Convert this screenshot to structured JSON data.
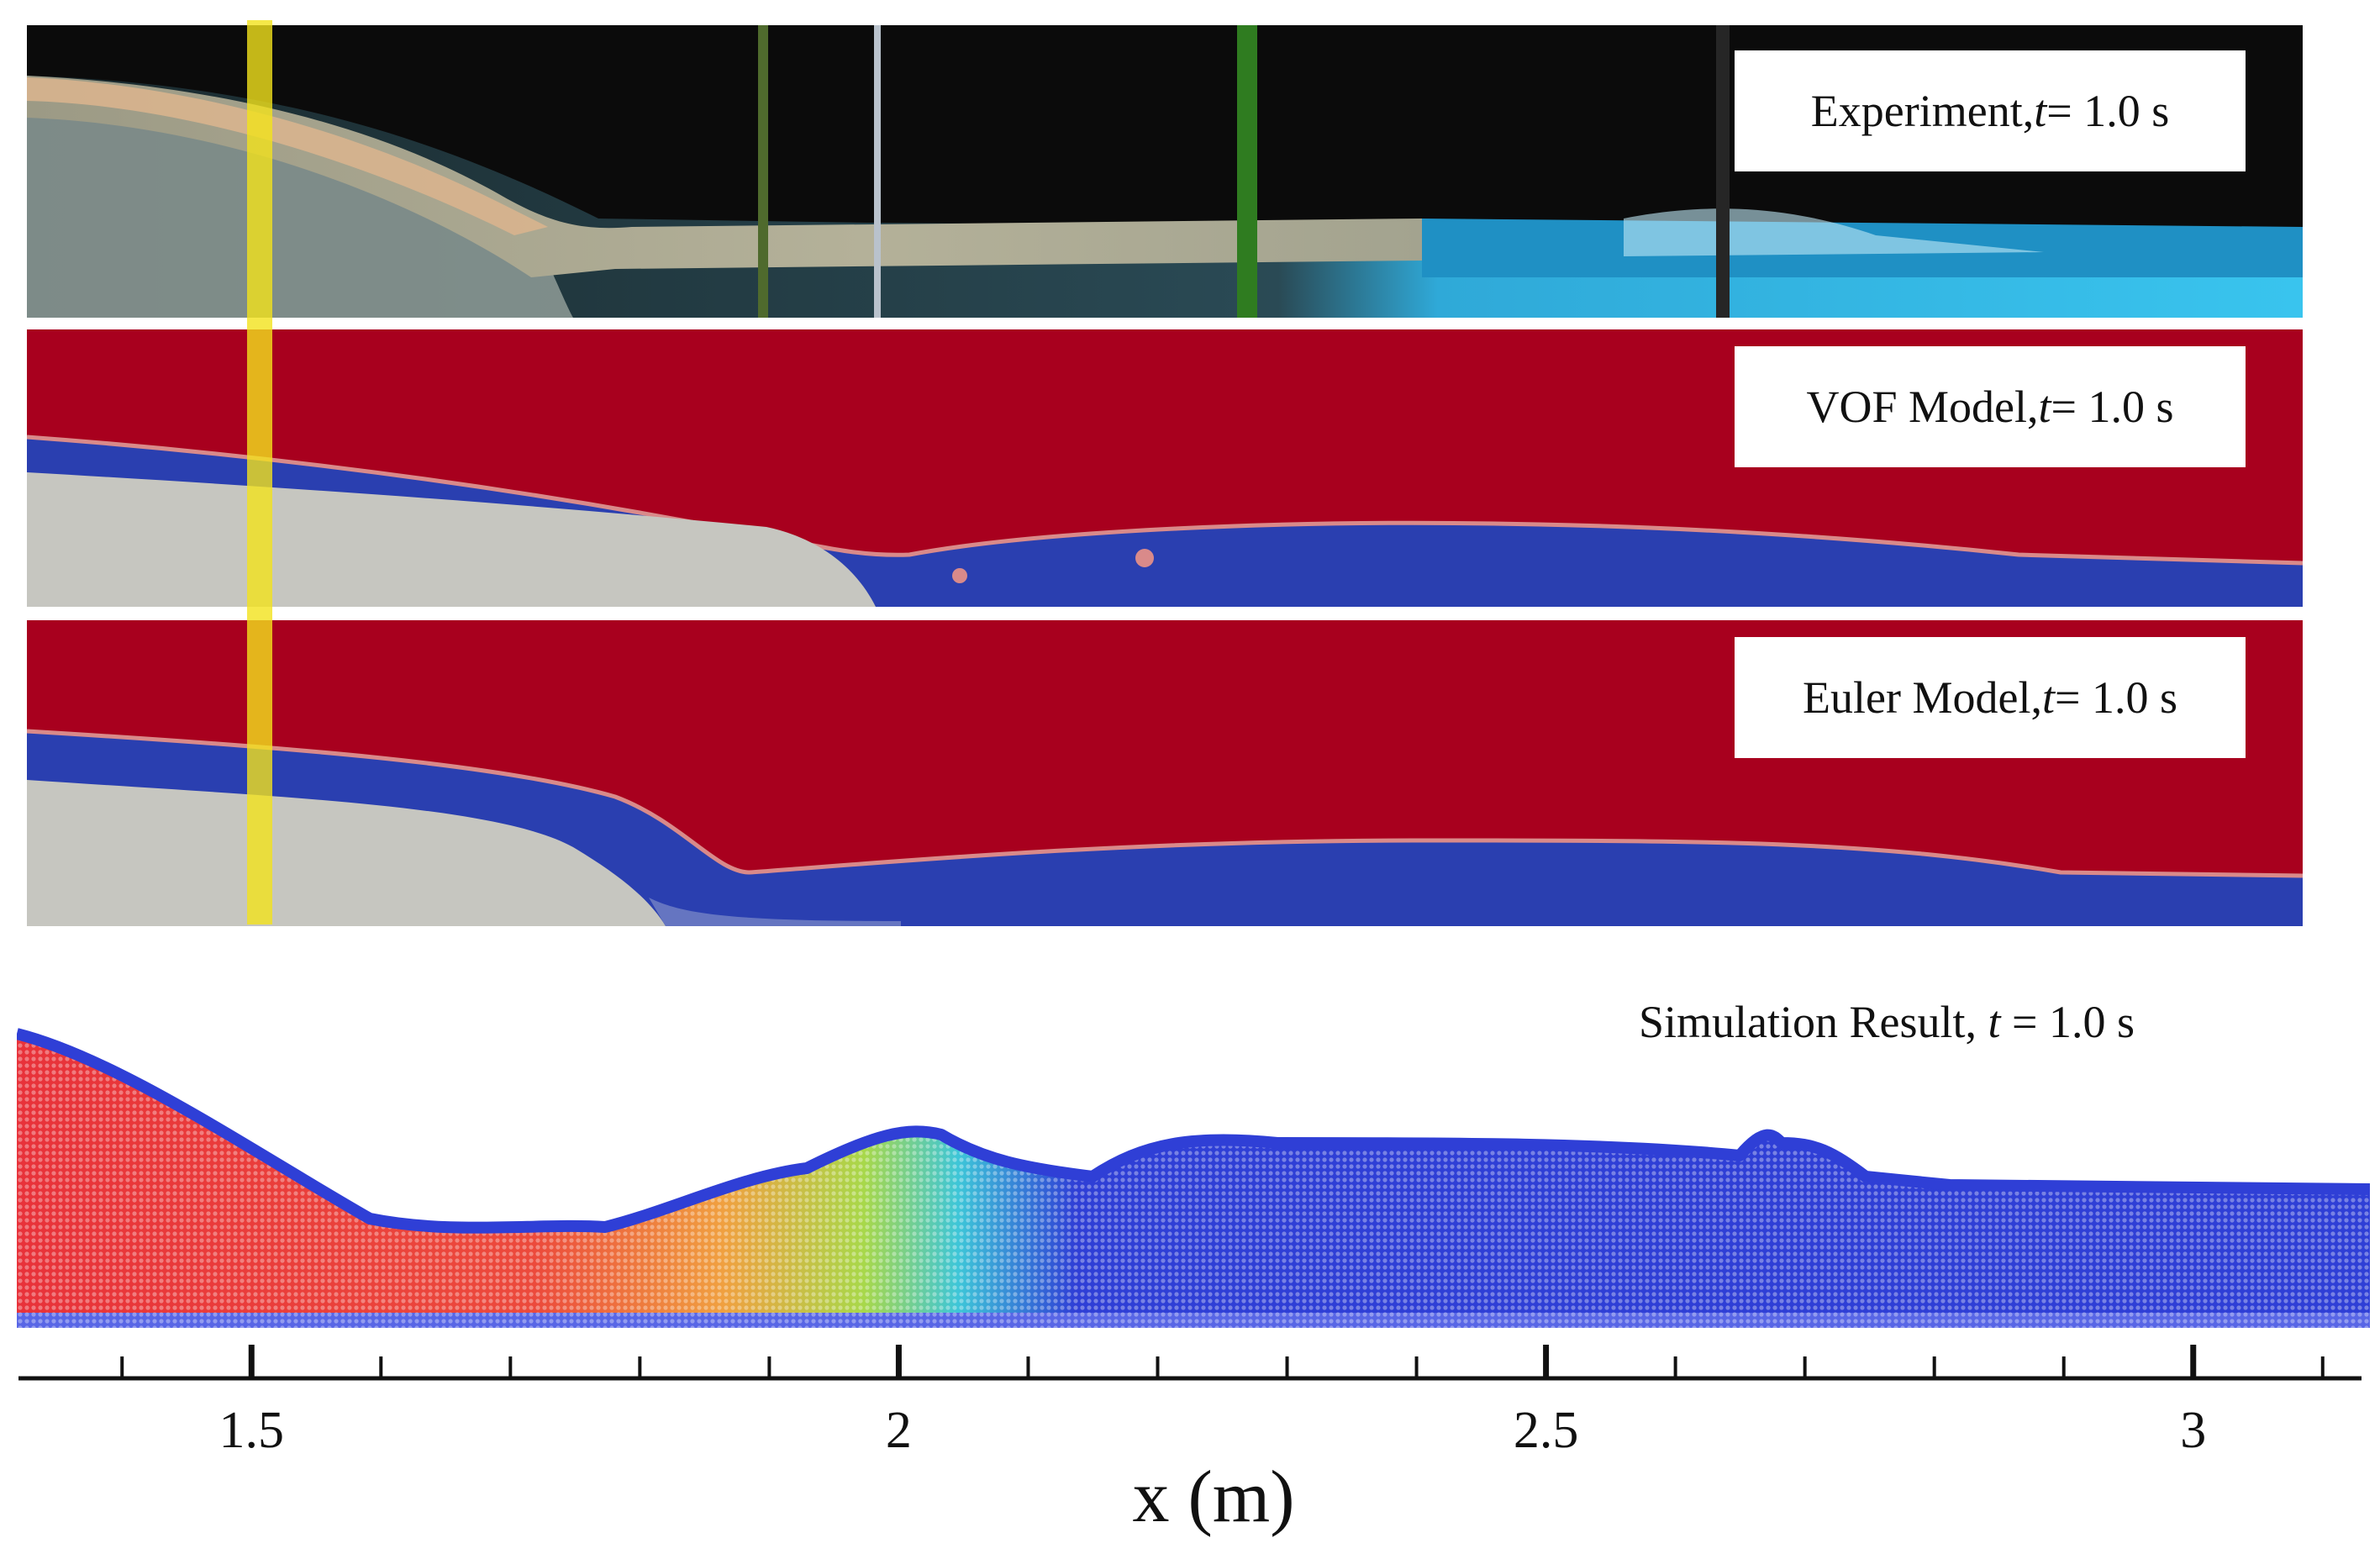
{
  "figure": {
    "panels": [
      {
        "id": "experiment",
        "label_main": "Experiment, ",
        "label_var": "t",
        "label_rest": " = 1.0 s"
      },
      {
        "id": "vof",
        "label_main": "VOF Model, ",
        "label_var": "t",
        "label_rest": " = 1.0 s"
      },
      {
        "id": "euler",
        "label_main": "Euler Model, ",
        "label_var": "t",
        "label_rest": " = 1.0 s"
      },
      {
        "id": "simulation",
        "label_main": "Simulation Result, ",
        "label_var": "t",
        "label_rest": " = 1.0 s"
      }
    ],
    "colors": {
      "air": "#a8001e",
      "water": "#2a3fb0",
      "sediment": "#c6c6c0",
      "interface": "#d98a8a",
      "marker_yellow": "#f3e21c",
      "particle_blue": "#2f3fd6",
      "particle_red": "#e8323a"
    }
  },
  "chart_data": {
    "type": "axis",
    "xlabel": "x (m)",
    "xlim": [
      1.32,
      3.13
    ],
    "major_ticks": [
      1.5,
      2,
      2.5,
      3
    ],
    "tick_labels": [
      "1.5",
      "2",
      "2.5",
      "3"
    ],
    "minor_step": 0.1
  }
}
